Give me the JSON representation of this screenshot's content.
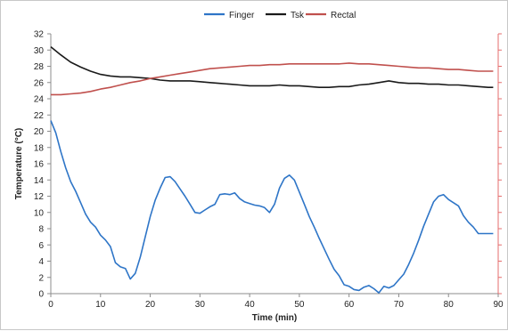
{
  "chart_data": {
    "type": "line",
    "xlabel": "Time (min)",
    "ylabel": "Temperature (°C)",
    "xlim": [
      0,
      90
    ],
    "ylim": [
      0,
      32
    ],
    "xticks": [
      0,
      10,
      20,
      30,
      40,
      50,
      60,
      70,
      80,
      90
    ],
    "yticks": [
      0,
      2,
      4,
      6,
      8,
      10,
      12,
      14,
      16,
      18,
      20,
      22,
      24,
      26,
      28,
      30,
      32
    ],
    "grid": false,
    "legend_position": "top-center",
    "series": [
      {
        "name": "Finger",
        "color": "#2e75c7",
        "x": [
          0,
          1,
          2,
          3,
          4,
          5,
          6,
          7,
          8,
          9,
          10,
          11,
          12,
          13,
          14,
          15,
          16,
          17,
          18,
          19,
          20,
          21,
          22,
          23,
          24,
          25,
          26,
          27,
          28,
          29,
          30,
          31,
          32,
          33,
          34,
          35,
          36,
          37,
          38,
          39,
          40,
          41,
          42,
          43,
          44,
          45,
          46,
          47,
          48,
          49,
          50,
          51,
          52,
          53,
          54,
          55,
          56,
          57,
          58,
          59,
          60,
          61,
          62,
          63,
          64,
          65,
          66,
          67,
          68,
          69,
          70,
          71,
          72,
          73,
          74,
          75,
          76,
          77,
          78,
          79,
          80,
          81,
          82,
          83,
          84,
          85,
          86,
          87,
          88,
          89
        ],
        "y": [
          21.3,
          19.8,
          17.5,
          15.5,
          13.8,
          12.6,
          11.2,
          9.8,
          8.8,
          8.2,
          7.2,
          6.6,
          5.8,
          3.8,
          3.3,
          3.1,
          1.8,
          2.5,
          4.5,
          7.0,
          9.5,
          11.5,
          13.0,
          14.3,
          14.4,
          13.8,
          12.9,
          12.0,
          11.0,
          10.0,
          9.9,
          10.3,
          10.7,
          11.0,
          12.2,
          12.3,
          12.2,
          12.4,
          11.7,
          11.3,
          11.1,
          10.9,
          10.8,
          10.6,
          10.0,
          11.0,
          13.0,
          14.2,
          14.6,
          14.0,
          12.5,
          11.0,
          9.5,
          8.2,
          6.8,
          5.5,
          4.2,
          3.0,
          2.2,
          1.1,
          0.9,
          0.5,
          0.4,
          0.8,
          1.0,
          0.6,
          0.1,
          0.9,
          0.7,
          1.0,
          1.7,
          2.4,
          3.6,
          5.0,
          6.6,
          8.3,
          9.8,
          11.3,
          12.0,
          12.2,
          11.6,
          11.2,
          10.8,
          9.6,
          8.8,
          8.2,
          7.4,
          7.4,
          7.4,
          7.4
        ]
      },
      {
        "name": "Tsk",
        "color": "#1a1a1a",
        "x": [
          0,
          2,
          4,
          6,
          8,
          10,
          12,
          14,
          16,
          18,
          20,
          22,
          24,
          26,
          28,
          30,
          32,
          34,
          36,
          38,
          40,
          42,
          44,
          46,
          48,
          50,
          52,
          54,
          56,
          58,
          60,
          62,
          64,
          66,
          68,
          70,
          72,
          74,
          76,
          78,
          80,
          82,
          84,
          86,
          88,
          89
        ],
        "y": [
          30.4,
          29.4,
          28.5,
          27.9,
          27.4,
          27.0,
          26.8,
          26.7,
          26.7,
          26.6,
          26.5,
          26.3,
          26.2,
          26.2,
          26.2,
          26.1,
          26.0,
          25.9,
          25.8,
          25.7,
          25.6,
          25.6,
          25.6,
          25.7,
          25.6,
          25.6,
          25.5,
          25.4,
          25.4,
          25.5,
          25.5,
          25.7,
          25.8,
          26.0,
          26.2,
          26.0,
          25.9,
          25.9,
          25.8,
          25.8,
          25.7,
          25.7,
          25.6,
          25.5,
          25.4,
          25.4
        ]
      },
      {
        "name": "Rectal",
        "color": "#c0504d",
        "x": [
          0,
          2,
          4,
          6,
          8,
          10,
          12,
          14,
          16,
          18,
          20,
          22,
          24,
          26,
          28,
          30,
          32,
          34,
          36,
          38,
          40,
          42,
          44,
          46,
          48,
          50,
          52,
          54,
          56,
          58,
          60,
          62,
          64,
          66,
          68,
          70,
          72,
          74,
          76,
          78,
          80,
          82,
          84,
          86,
          88,
          89
        ],
        "y": [
          24.5,
          24.5,
          24.6,
          24.7,
          24.9,
          25.2,
          25.4,
          25.7,
          26.0,
          26.2,
          26.5,
          26.7,
          26.9,
          27.1,
          27.3,
          27.5,
          27.7,
          27.8,
          27.9,
          28.0,
          28.1,
          28.1,
          28.2,
          28.2,
          28.3,
          28.3,
          28.3,
          28.3,
          28.3,
          28.3,
          28.4,
          28.3,
          28.3,
          28.2,
          28.1,
          28.0,
          27.9,
          27.8,
          27.8,
          27.7,
          27.6,
          27.6,
          27.5,
          27.4,
          27.4,
          27.4
        ]
      }
    ]
  },
  "right_axis_color": "#e46c6c",
  "axis_color": "#8c8c8c"
}
